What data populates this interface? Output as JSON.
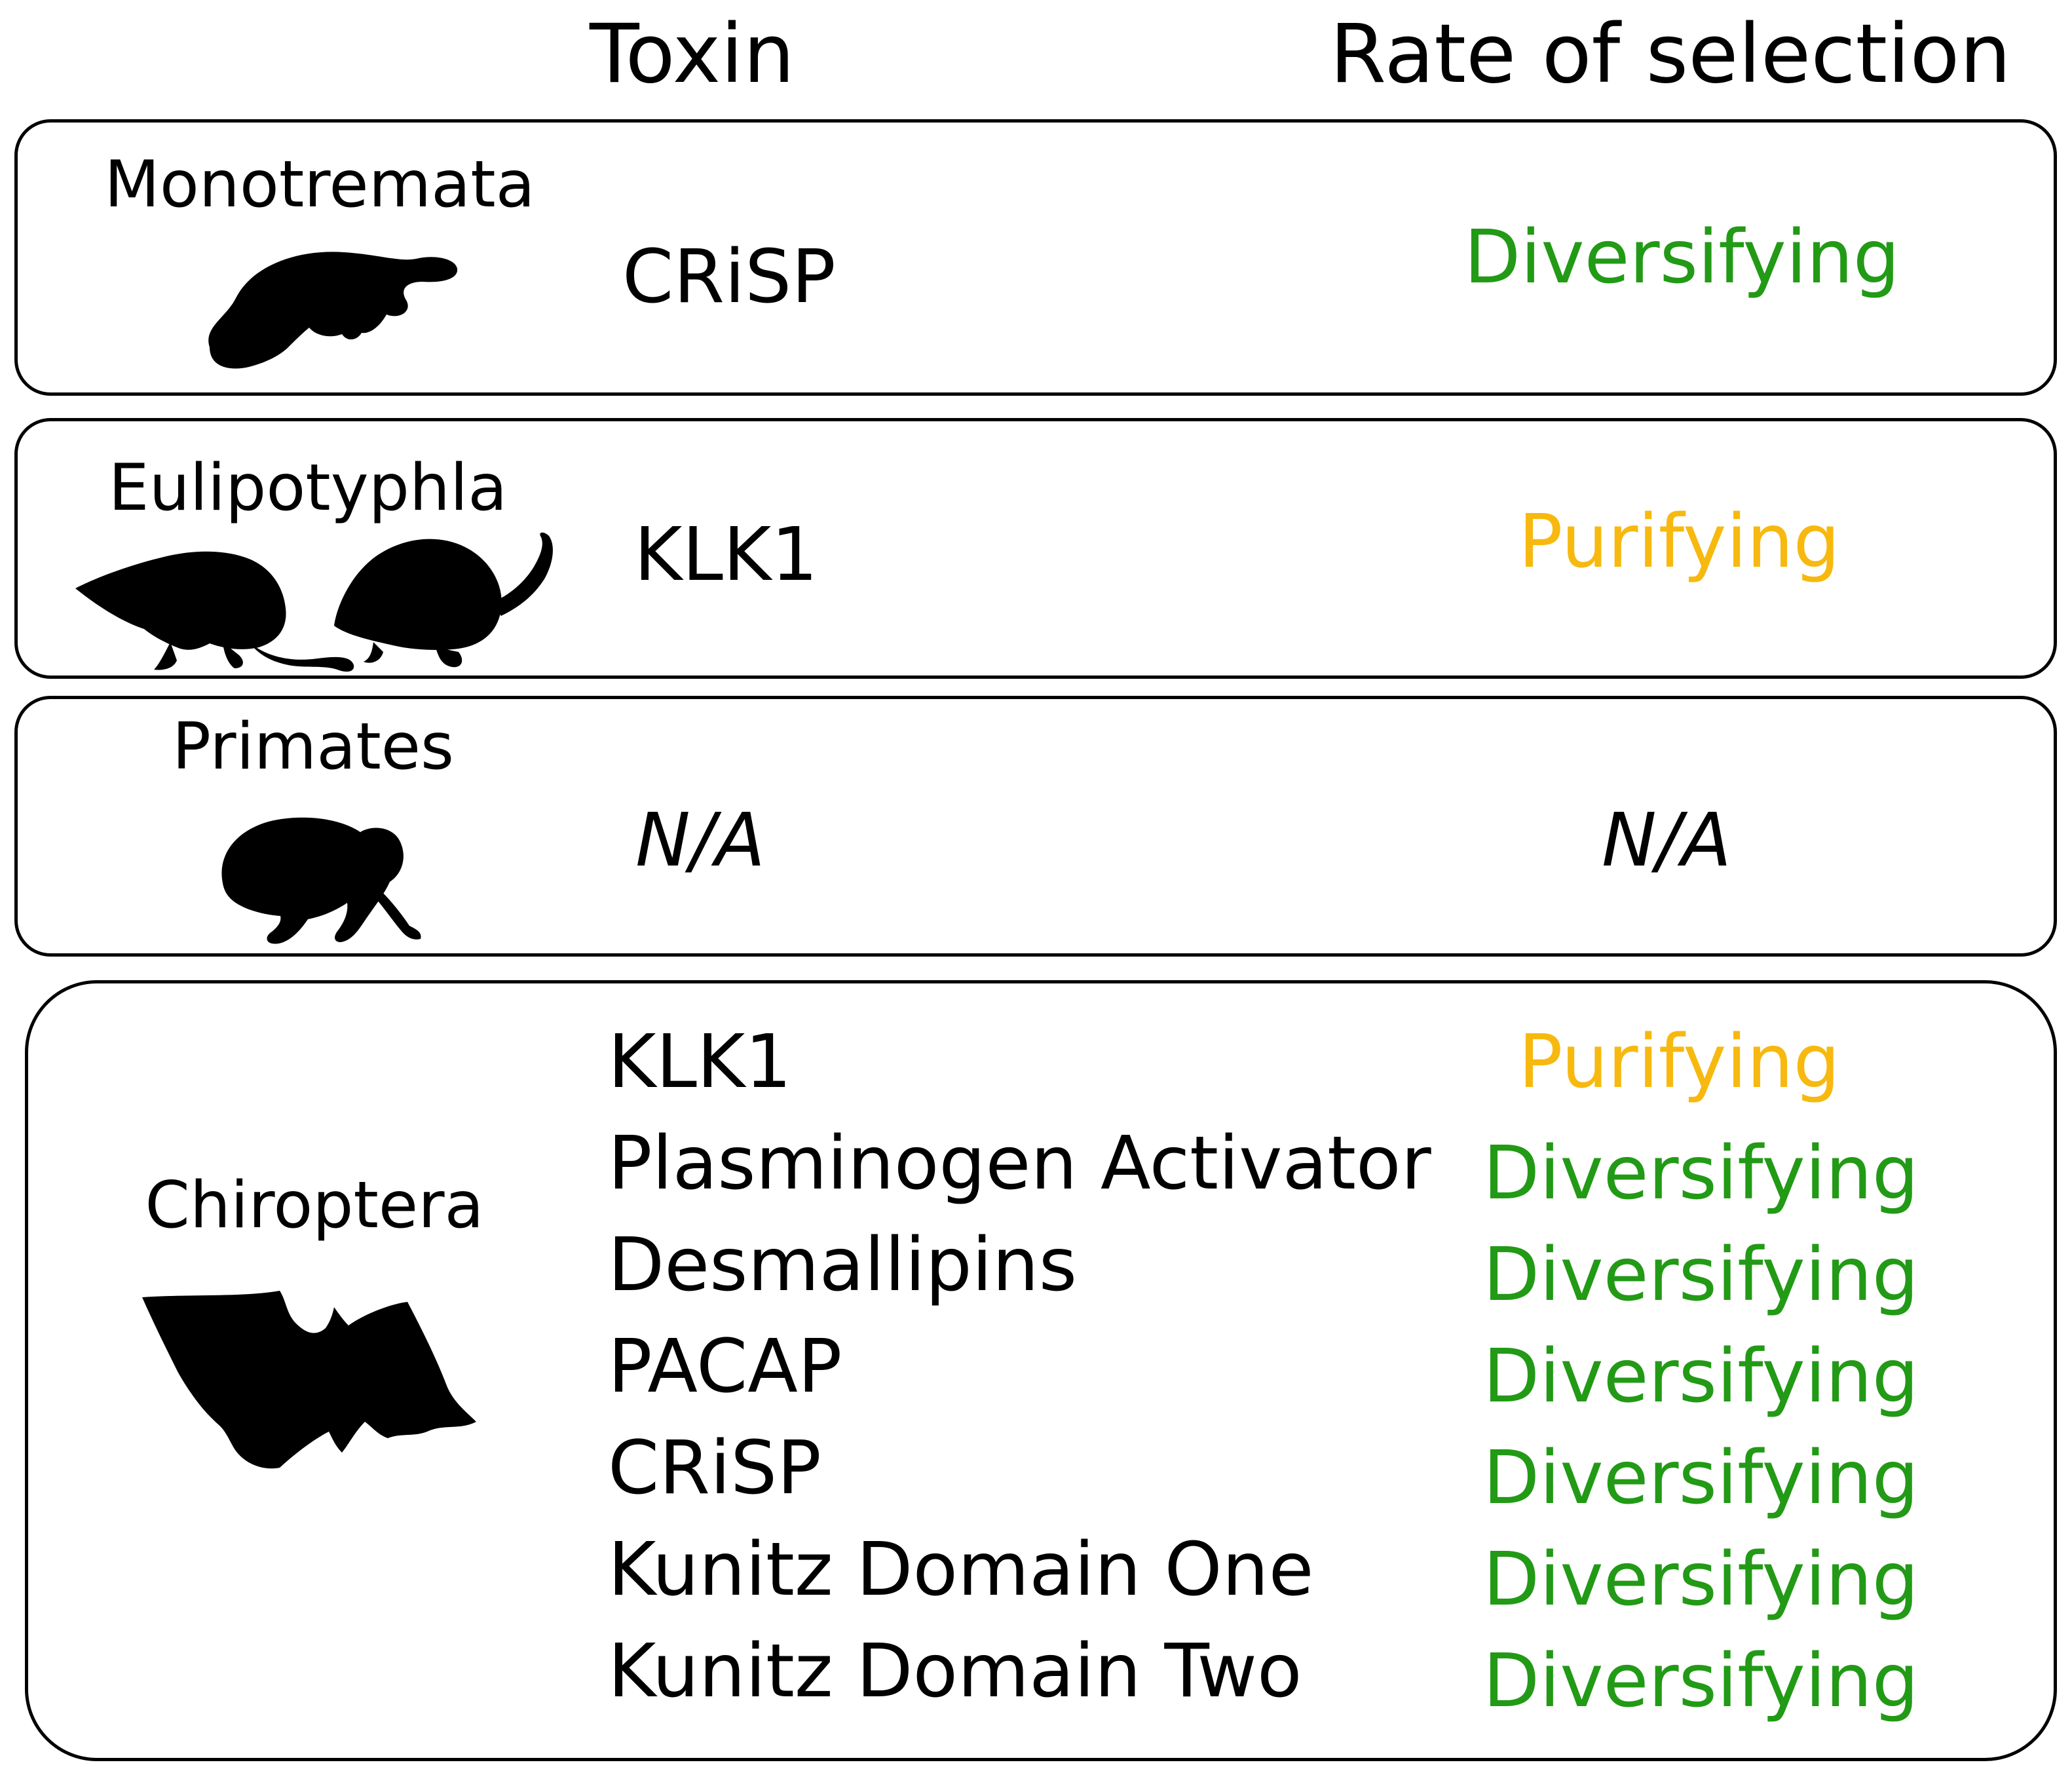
{
  "headers": {
    "toxin": "Toxin",
    "rate": "Rate of selection"
  },
  "colors": {
    "diversifying": "#229a16",
    "purifying": "#f7b90f",
    "text": "#000000",
    "border": "#000000"
  },
  "groups": [
    {
      "taxon": "Monotremata",
      "icon": "platypus-icon",
      "rows": [
        {
          "toxin": "CRiSP",
          "selection": "Diversifying",
          "type": "diversifying"
        }
      ]
    },
    {
      "taxon": "Eulipotyphla",
      "icon": "shrew-and-solenodon-icon",
      "rows": [
        {
          "toxin": "KLK1",
          "selection": "Purifying",
          "type": "purifying"
        }
      ]
    },
    {
      "taxon": "Primates",
      "icon": "slow-loris-icon",
      "rows": [
        {
          "toxin": "N/A",
          "selection": "N/A",
          "type": "na"
        }
      ]
    },
    {
      "taxon": "Chiroptera",
      "icon": "bat-icon",
      "rows": [
        {
          "toxin": "KLK1",
          "selection": "Purifying",
          "type": "purifying"
        },
        {
          "toxin": "Plasminogen Activator",
          "selection": "Diversifying",
          "type": "diversifying"
        },
        {
          "toxin": "Desmallipins",
          "selection": "Diversifying",
          "type": "diversifying"
        },
        {
          "toxin": "PACAP",
          "selection": "Diversifying",
          "type": "diversifying"
        },
        {
          "toxin": "CRiSP",
          "selection": "Diversifying",
          "type": "diversifying"
        },
        {
          "toxin": "Kunitz Domain One",
          "selection": "Diversifying",
          "type": "diversifying"
        },
        {
          "toxin": "Kunitz Domain Two",
          "selection": "Diversifying",
          "type": "diversifying"
        }
      ]
    }
  ]
}
